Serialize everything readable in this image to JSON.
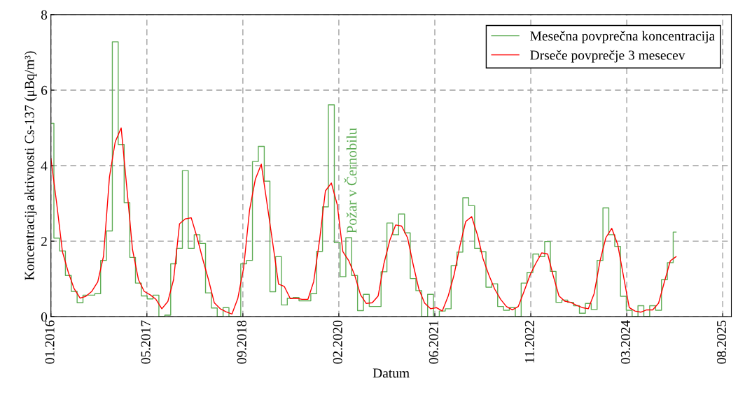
{
  "chart_data": {
    "type": "step",
    "xlabel": "Datum",
    "ylabel": "Koncentracija aktivnosti Cs-137 (μBq/m³)",
    "x": [
      "2016-01",
      "2016-02",
      "2016-03",
      "2016-04",
      "2016-05",
      "2016-06",
      "2016-07",
      "2016-08",
      "2016-09",
      "2016-10",
      "2016-11",
      "2016-12",
      "2017-01",
      "2017-02",
      "2017-03",
      "2017-04",
      "2017-05",
      "2017-06",
      "2017-07",
      "2017-08",
      "2017-09",
      "2017-10",
      "2017-11",
      "2017-12",
      "2018-01",
      "2018-02",
      "2018-03",
      "2018-04",
      "2018-05",
      "2018-06",
      "2018-07",
      "2018-08",
      "2018-09",
      "2018-10",
      "2018-11",
      "2018-12",
      "2019-01",
      "2019-02",
      "2019-03",
      "2019-04",
      "2019-05",
      "2019-06",
      "2019-07",
      "2019-08",
      "2019-09",
      "2019-10",
      "2019-11",
      "2019-12",
      "2020-01",
      "2020-02",
      "2020-03",
      "2020-04",
      "2020-05",
      "2020-06",
      "2020-07",
      "2020-08",
      "2020-09",
      "2020-10",
      "2020-11",
      "2020-12",
      "2021-01",
      "2021-02",
      "2021-03",
      "2021-04",
      "2021-05",
      "2021-06",
      "2021-07",
      "2021-08",
      "2021-09",
      "2021-10",
      "2021-11",
      "2021-12",
      "2022-01",
      "2022-02",
      "2022-03",
      "2022-04",
      "2022-05",
      "2022-06",
      "2022-07",
      "2022-08",
      "2022-09",
      "2022-10",
      "2022-11",
      "2022-12",
      "2023-01",
      "2023-02",
      "2023-03",
      "2023-04",
      "2023-05",
      "2023-06",
      "2023-07",
      "2023-08",
      "2023-09",
      "2023-10",
      "2023-11",
      "2023-12",
      "2024-01",
      "2024-02",
      "2024-03",
      "2024-04",
      "2024-05",
      "2024-06",
      "2024-07",
      "2024-08",
      "2024-09",
      "2024-10",
      "2024-11",
      "2024-12"
    ],
    "series": [
      {
        "name": "Mesečna povprečna koncentracija",
        "color": "#5fad56",
        "values": [
          5.12,
          2.08,
          1.74,
          1.09,
          0.67,
          0.37,
          0.57,
          0.57,
          0.61,
          1.49,
          2.27,
          7.28,
          4.56,
          3.02,
          1.57,
          0.89,
          0.55,
          0.47,
          0.57,
          0,
          0.04,
          1.4,
          1.81,
          3.87,
          1.81,
          2.17,
          1.94,
          0.63,
          0.23,
          0,
          0.24,
          0,
          0,
          1.4,
          1.49,
          4.11,
          4.51,
          3.59,
          0.66,
          1.59,
          0.31,
          0.49,
          0.51,
          0.42,
          0.42,
          0.61,
          1.73,
          2.91,
          5.61,
          1.96,
          1.06,
          2.09,
          1.09,
          0.16,
          0.59,
          0.27,
          0.27,
          1.19,
          2.48,
          2.17,
          2.72,
          2.22,
          1.01,
          0.69,
          0,
          0.59,
          0,
          0.15,
          0.21,
          1.35,
          1.71,
          3.15,
          2.94,
          1.81,
          1.72,
          0.78,
          0.87,
          0.27,
          0.17,
          0.24,
          0,
          0.89,
          1.17,
          1.66,
          1.59,
          1.99,
          1.2,
          0.38,
          0.44,
          0.38,
          0.29,
          0.09,
          0.35,
          0.19,
          1.49,
          2.88,
          2.17,
          1.86,
          0.54,
          0.17,
          0,
          0.29,
          0,
          0.29,
          0.17,
          0.98,
          1.43,
          2.24
        ]
      },
      {
        "name": "Drseče povprečje 3 mesecev",
        "type": "line",
        "color": "#ff0000",
        "values": [
          4.19,
          2.96,
          1.72,
          1.17,
          0.74,
          0.49,
          0.54,
          0.67,
          0.92,
          1.6,
          3.7,
          4.63,
          5.0,
          3.33,
          1.78,
          0.98,
          0.67,
          0.58,
          0.46,
          0.21,
          0.4,
          0.98,
          2.46,
          2.59,
          2.62,
          2.09,
          1.54,
          0.98,
          0.37,
          0.21,
          0.13,
          0.07,
          0.49,
          1.29,
          2.83,
          3.64,
          4.04,
          2.96,
          1.97,
          0.86,
          0.8,
          0.48,
          0.49,
          0.46,
          0.46,
          0.93,
          2.04,
          3.33,
          3.54,
          2.96,
          1.72,
          1.48,
          1.11,
          0.58,
          0.35,
          0.37,
          0.55,
          1.41,
          2.03,
          2.43,
          2.4,
          2.09,
          1.41,
          0.73,
          0.36,
          0.21,
          0.24,
          0.15,
          0.55,
          1.1,
          1.88,
          2.52,
          2.65,
          2.15,
          1.54,
          1.1,
          0.73,
          0.46,
          0.27,
          0.18,
          0.27,
          0.67,
          1.1,
          1.41,
          1.69,
          1.66,
          1.1,
          0.55,
          0.41,
          0.38,
          0.3,
          0.24,
          0.21,
          0.61,
          1.48,
          2.09,
          2.34,
          1.91,
          1.1,
          0.24,
          0.15,
          0.12,
          0.18,
          0.18,
          0.36,
          0.92,
          1.48,
          1.59
        ]
      }
    ],
    "annotations": [
      "Požar v Černobilu"
    ],
    "xlim": [
      "2016-01-01",
      "2025-09-15"
    ],
    "xticks": [
      {
        "value": "2016-01-01",
        "label": "01.2016"
      },
      {
        "value": "2017-05-15",
        "label": "05.2017"
      },
      {
        "value": "2018-09-27",
        "label": "09.2018"
      },
      {
        "value": "2020-02-09",
        "label": "02.2020"
      },
      {
        "value": "2021-06-23",
        "label": "06.2021"
      },
      {
        "value": "2022-11-05",
        "label": "11.2022"
      },
      {
        "value": "2024-03-19",
        "label": "03.2024"
      },
      {
        "value": "2025-08-01",
        "label": "08.2025"
      }
    ],
    "ylim": [
      0,
      8
    ],
    "yticks": [
      0,
      2,
      4,
      6,
      8
    ],
    "grid": true,
    "legend": "top right",
    "marker": "none",
    "line_style": "solid"
  }
}
